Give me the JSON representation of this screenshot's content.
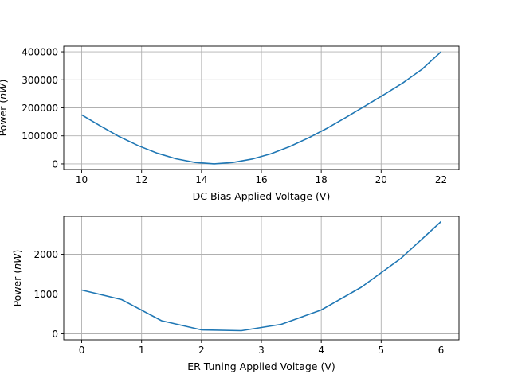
{
  "chart_data": [
    {
      "type": "line",
      "xlabel": "DC Bias Applied Voltage (V)",
      "ylabel_prefix": "Power (",
      "ylabel_unit": "nW",
      "ylabel_suffix": ")",
      "xlim": [
        9.4,
        22.6
      ],
      "ylim": [
        -20000,
        420000
      ],
      "xticks": [
        10,
        12,
        14,
        16,
        18,
        20,
        22
      ],
      "yticks": [
        0,
        100000,
        200000,
        300000,
        400000
      ],
      "xtick_labels": [
        "10",
        "12",
        "14",
        "16",
        "18",
        "20",
        "22"
      ],
      "ytick_labels": [
        "0",
        "100000",
        "200000",
        "300000",
        "400000"
      ],
      "grid": true,
      "series": [
        {
          "color": "#1f77b4",
          "x": [
            10,
            10.63,
            11.26,
            11.89,
            12.53,
            13.16,
            13.79,
            14.42,
            15.05,
            15.68,
            16.32,
            16.95,
            17.58,
            18.21,
            18.84,
            19.47,
            20.11,
            20.74,
            21.37,
            22
          ],
          "y": [
            175000,
            135000,
            97000,
            65000,
            38000,
            18000,
            5000,
            0,
            5000,
            17000,
            36000,
            62000,
            93000,
            128000,
            167000,
            207000,
            248000,
            290000,
            338000,
            400000
          ]
        }
      ]
    },
    {
      "type": "line",
      "xlabel": "ER Tuning Applied Voltage (V)",
      "ylabel_prefix": "Power (",
      "ylabel_unit": "nW",
      "ylabel_suffix": ")",
      "xlim": [
        -0.3,
        6.3
      ],
      "ylim": [
        -150,
        2950
      ],
      "xticks": [
        0,
        1,
        2,
        3,
        4,
        5,
        6
      ],
      "yticks": [
        0,
        1000,
        2000
      ],
      "xtick_labels": [
        "0",
        "1",
        "2",
        "3",
        "4",
        "5",
        "6"
      ],
      "ytick_labels": [
        "0",
        "1000",
        "2000"
      ],
      "grid": true,
      "series": [
        {
          "color": "#1f77b4",
          "x": [
            0,
            0.667,
            1.333,
            2,
            2.667,
            3.333,
            4,
            4.667,
            5.333,
            6
          ],
          "y": [
            1100,
            860,
            330,
            100,
            80,
            240,
            600,
            1170,
            1900,
            2820
          ]
        }
      ]
    }
  ]
}
